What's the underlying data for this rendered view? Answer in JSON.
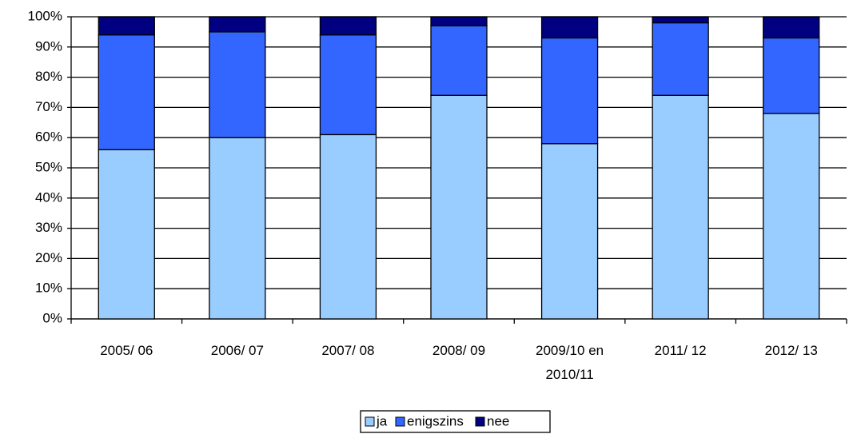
{
  "chart_data": {
    "type": "stacked_bar",
    "categories": [
      "2005/ 06",
      "2006/ 07",
      "2007/ 08",
      "2008/ 09",
      "2009/10 en 2010/11",
      "2011/ 12",
      "2012/ 13"
    ],
    "series": [
      {
        "name": "ja",
        "color": "#99ccff",
        "values": [
          56,
          60,
          61,
          74,
          58,
          74,
          68
        ]
      },
      {
        "name": "enigszins",
        "color": "#3366ff",
        "values": [
          38,
          35,
          33,
          23,
          35,
          24,
          25
        ]
      },
      {
        "name": "nee",
        "color": "#000080",
        "values": [
          6,
          5,
          6,
          3,
          7,
          2,
          7
        ]
      }
    ],
    "ylim": [
      0,
      100
    ],
    "yticks": [
      {
        "value": 0,
        "label": "0%"
      },
      {
        "value": 10,
        "label": "10%"
      },
      {
        "value": 20,
        "label": "20%"
      },
      {
        "value": 30,
        "label": "30%"
      },
      {
        "value": 40,
        "label": "40%"
      },
      {
        "value": 50,
        "label": "50%"
      },
      {
        "value": 60,
        "label": "60%"
      },
      {
        "value": 70,
        "label": "70%"
      },
      {
        "value": 80,
        "label": "80%"
      },
      {
        "value": 90,
        "label": "90%"
      },
      {
        "value": 100,
        "label": "100%"
      }
    ],
    "grid": true,
    "legend": "bottom"
  }
}
